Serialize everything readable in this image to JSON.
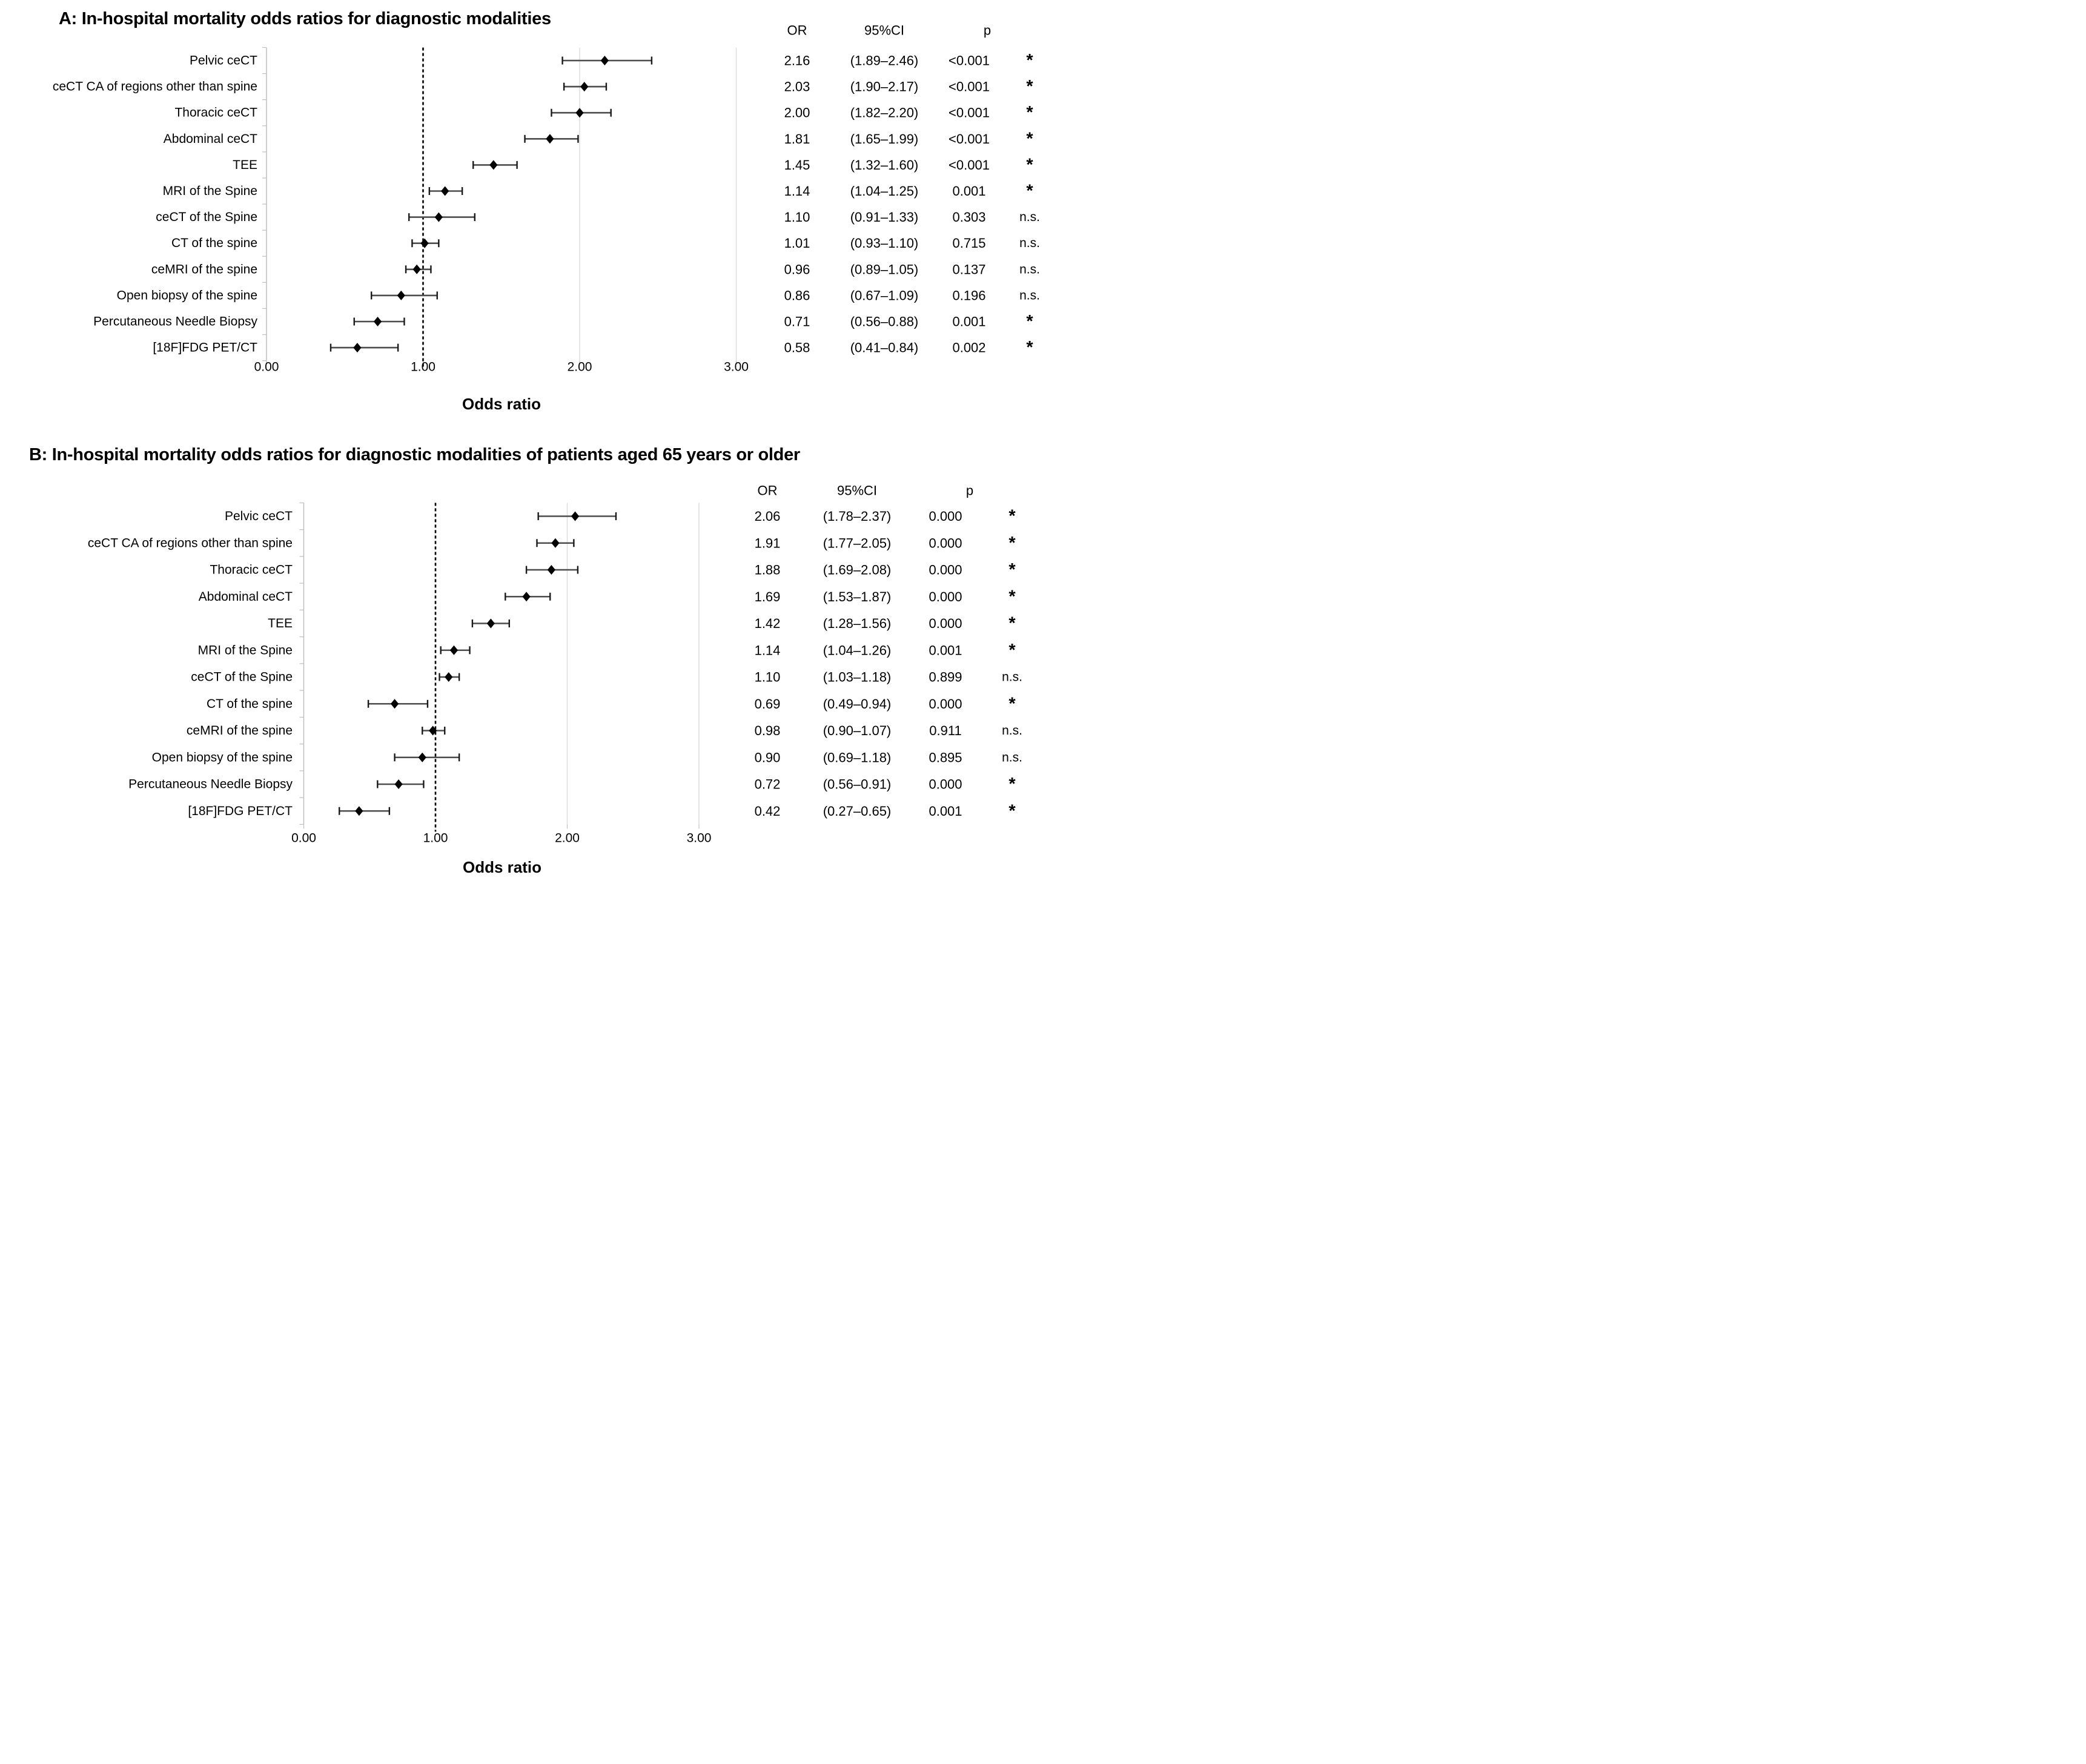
{
  "figure": {
    "panels": [
      {
        "id": "A",
        "title": "A: In-hospital mortality odds ratios for diagnostic modalities",
        "columns": {
          "or": "OR",
          "ci": "95%CI",
          "p": "p"
        },
        "xlabel": "Odds ratio",
        "x_ticks": [
          "0.00",
          "1.00",
          "2.00",
          "3.00"
        ],
        "rows": [
          {
            "label": "Pelvic ceCT",
            "or": 2.16,
            "ci_low": 1.89,
            "ci_high": 2.46,
            "or_text": "2.16",
            "ci_text": "(1.89–2.46)",
            "p_text": "<0.001",
            "sig": "*"
          },
          {
            "label": "ceCT CA of regions other than spine",
            "or": 2.03,
            "ci_low": 1.9,
            "ci_high": 2.17,
            "or_text": "2.03",
            "ci_text": "(1.90–2.17)",
            "p_text": "<0.001",
            "sig": "*"
          },
          {
            "label": "Thoracic ceCT",
            "or": 2.0,
            "ci_low": 1.82,
            "ci_high": 2.2,
            "or_text": "2.00",
            "ci_text": "(1.82–2.20)",
            "p_text": "<0.001",
            "sig": "*"
          },
          {
            "label": "Abdominal ceCT",
            "or": 1.81,
            "ci_low": 1.65,
            "ci_high": 1.99,
            "or_text": "1.81",
            "ci_text": "(1.65–1.99)",
            "p_text": "<0.001",
            "sig": "*"
          },
          {
            "label": "TEE",
            "or": 1.45,
            "ci_low": 1.32,
            "ci_high": 1.6,
            "or_text": "1.45",
            "ci_text": "(1.32–1.60)",
            "p_text": "<0.001",
            "sig": "*"
          },
          {
            "label": "MRI of the Spine",
            "or": 1.14,
            "ci_low": 1.04,
            "ci_high": 1.25,
            "or_text": "1.14",
            "ci_text": "(1.04–1.25)",
            "p_text": "0.001",
            "sig": "*"
          },
          {
            "label": "ceCT of the Spine",
            "or": 1.1,
            "ci_low": 0.91,
            "ci_high": 1.33,
            "or_text": "1.10",
            "ci_text": "(0.91–1.33)",
            "p_text": "0.303",
            "sig": "n.s."
          },
          {
            "label": "CT of the spine",
            "or": 1.01,
            "ci_low": 0.93,
            "ci_high": 1.1,
            "or_text": "1.01",
            "ci_text": "(0.93–1.10)",
            "p_text": "0.715",
            "sig": "n.s."
          },
          {
            "label": "ceMRI of the spine",
            "or": 0.96,
            "ci_low": 0.89,
            "ci_high": 1.05,
            "or_text": "0.96",
            "ci_text": "(0.89–1.05)",
            "p_text": "0.137",
            "sig": "n.s."
          },
          {
            "label": "Open biopsy of the spine",
            "or": 0.86,
            "ci_low": 0.67,
            "ci_high": 1.09,
            "or_text": "0.86",
            "ci_text": "(0.67–1.09)",
            "p_text": "0.196",
            "sig": "n.s."
          },
          {
            "label": "Percutaneous Needle Biopsy",
            "or": 0.71,
            "ci_low": 0.56,
            "ci_high": 0.88,
            "or_text": "0.71",
            "ci_text": "(0.56–0.88)",
            "p_text": "0.001",
            "sig": "*"
          },
          {
            "label": "[18F]FDG PET/CT",
            "or": 0.58,
            "ci_low": 0.41,
            "ci_high": 0.84,
            "or_text": "0.58",
            "ci_text": "(0.41–0.84)",
            "p_text": "0.002",
            "sig": "*"
          }
        ]
      },
      {
        "id": "B",
        "title": "B: In-hospital mortality odds ratios for diagnostic modalities of patients aged 65 years or older",
        "columns": {
          "or": "OR",
          "ci": "95%CI",
          "p": "p"
        },
        "xlabel": "Odds ratio",
        "x_ticks": [
          "0.00",
          "1.00",
          "2.00",
          "3.00"
        ],
        "rows": [
          {
            "label": "Pelvic ceCT",
            "or": 2.06,
            "ci_low": 1.78,
            "ci_high": 2.37,
            "or_text": "2.06",
            "ci_text": "(1.78–2.37)",
            "p_text": "0.000",
            "sig": "*"
          },
          {
            "label": "ceCT CA of regions other than spine",
            "or": 1.91,
            "ci_low": 1.77,
            "ci_high": 2.05,
            "or_text": "1.91",
            "ci_text": "(1.77–2.05)",
            "p_text": "0.000",
            "sig": "*"
          },
          {
            "label": "Thoracic ceCT",
            "or": 1.88,
            "ci_low": 1.69,
            "ci_high": 2.08,
            "or_text": "1.88",
            "ci_text": "(1.69–2.08)",
            "p_text": "0.000",
            "sig": "*"
          },
          {
            "label": "Abdominal ceCT",
            "or": 1.69,
            "ci_low": 1.53,
            "ci_high": 1.87,
            "or_text": "1.69",
            "ci_text": "(1.53–1.87)",
            "p_text": "0.000",
            "sig": "*"
          },
          {
            "label": "TEE",
            "or": 1.42,
            "ci_low": 1.28,
            "ci_high": 1.56,
            "or_text": "1.42",
            "ci_text": "(1.28–1.56)",
            "p_text": "0.000",
            "sig": "*"
          },
          {
            "label": "MRI of the Spine",
            "or": 1.14,
            "ci_low": 1.04,
            "ci_high": 1.26,
            "or_text": "1.14",
            "ci_text": "(1.04–1.26)",
            "p_text": "0.001",
            "sig": "*"
          },
          {
            "label": "ceCT of the Spine",
            "or": 1.1,
            "ci_low": 1.03,
            "ci_high": 1.18,
            "or_text": "1.10",
            "ci_text": "(1.03–1.18)",
            "p_text": "0.899",
            "sig": "n.s."
          },
          {
            "label": "CT of the spine",
            "or": 0.69,
            "ci_low": 0.49,
            "ci_high": 0.94,
            "or_text": "0.69",
            "ci_text": "(0.49–0.94)",
            "p_text": "0.000",
            "sig": "*"
          },
          {
            "label": "ceMRI of the spine",
            "or": 0.98,
            "ci_low": 0.9,
            "ci_high": 1.07,
            "or_text": "0.98",
            "ci_text": "(0.90–1.07)",
            "p_text": "0.911",
            "sig": "n.s."
          },
          {
            "label": "Open biopsy of the spine",
            "or": 0.9,
            "ci_low": 0.69,
            "ci_high": 1.18,
            "or_text": "0.90",
            "ci_text": "(0.69–1.18)",
            "p_text": "0.895",
            "sig": "n.s."
          },
          {
            "label": "Percutaneous Needle Biopsy",
            "or": 0.72,
            "ci_low": 0.56,
            "ci_high": 0.91,
            "or_text": "0.72",
            "ci_text": "(0.56–0.91)",
            "p_text": "0.000",
            "sig": "*"
          },
          {
            "label": "[18F]FDG PET/CT",
            "or": 0.42,
            "ci_low": 0.27,
            "ci_high": 0.65,
            "or_text": "0.42",
            "ci_text": "(0.27–0.65)",
            "p_text": "0.001",
            "sig": "*"
          }
        ]
      }
    ],
    "colors": {
      "marker": "#000000",
      "ci_bar": "#4d4d4d",
      "ci_cap": "#1a1a1a",
      "gridline": "#d9d9d9",
      "axis": "#bfbfbf",
      "reference_line": "#000000",
      "text": "#000000"
    }
  },
  "chart_data": [
    {
      "type": "scatter",
      "subtype": "forest-plot",
      "title": "A: In-hospital mortality odds ratios for diagnostic modalities",
      "categories": [
        "Pelvic ceCT",
        "ceCT CA of regions other than spine",
        "Thoracic ceCT",
        "Abdominal ceCT",
        "TEE",
        "MRI of the Spine",
        "ceCT of the Spine",
        "CT of the spine",
        "ceMRI of the spine",
        "Open biopsy of the spine",
        "Percutaneous Needle Biopsy",
        "[18F]FDG PET/CT"
      ],
      "series": [
        {
          "name": "OR",
          "values": [
            2.16,
            2.03,
            2.0,
            1.81,
            1.45,
            1.14,
            1.1,
            1.01,
            0.96,
            0.86,
            0.71,
            0.58
          ]
        },
        {
          "name": "CI lower",
          "values": [
            1.89,
            1.9,
            1.82,
            1.65,
            1.32,
            1.04,
            0.91,
            0.93,
            0.89,
            0.67,
            0.56,
            0.41
          ]
        },
        {
          "name": "CI upper",
          "values": [
            2.46,
            2.17,
            2.2,
            1.99,
            1.6,
            1.25,
            1.33,
            1.1,
            1.05,
            1.09,
            0.88,
            0.84
          ]
        }
      ],
      "p_values": [
        "<0.001",
        "<0.001",
        "<0.001",
        "<0.001",
        "<0.001",
        "0.001",
        "0.303",
        "0.715",
        "0.137",
        "0.196",
        "0.001",
        "0.002"
      ],
      "significance": [
        "*",
        "*",
        "*",
        "*",
        "*",
        "*",
        "n.s.",
        "n.s.",
        "n.s.",
        "n.s.",
        "*",
        "*"
      ],
      "table_headers": [
        "OR",
        "95%CI",
        "p"
      ],
      "xlabel": "Odds ratio",
      "ylabel": "",
      "xlim": [
        0,
        3.3
      ],
      "x_ticks": [
        0.0,
        1.0,
        2.0,
        3.0
      ],
      "reference_line_x": 1.0,
      "grid": true,
      "legend": "none"
    },
    {
      "type": "scatter",
      "subtype": "forest-plot",
      "title": "B: In-hospital mortality odds ratios for diagnostic modalities of patients aged 65 years or older",
      "categories": [
        "Pelvic ceCT",
        "ceCT CA of regions other than spine",
        "Thoracic ceCT",
        "Abdominal ceCT",
        "TEE",
        "MRI of the Spine",
        "ceCT of the Spine",
        "CT of the spine",
        "ceMRI of the spine",
        "Open biopsy of the spine",
        "Percutaneous Needle Biopsy",
        "[18F]FDG PET/CT"
      ],
      "series": [
        {
          "name": "OR",
          "values": [
            2.06,
            1.91,
            1.88,
            1.69,
            1.42,
            1.14,
            1.1,
            0.69,
            0.98,
            0.9,
            0.72,
            0.42
          ]
        },
        {
          "name": "CI lower",
          "values": [
            1.78,
            1.77,
            1.69,
            1.53,
            1.28,
            1.04,
            1.03,
            0.49,
            0.9,
            0.69,
            0.56,
            0.27
          ]
        },
        {
          "name": "CI upper",
          "values": [
            2.37,
            2.05,
            2.08,
            1.87,
            1.56,
            1.26,
            1.18,
            0.94,
            1.07,
            1.18,
            0.91,
            0.65
          ]
        }
      ],
      "p_values": [
        "0.000",
        "0.000",
        "0.000",
        "0.000",
        "0.000",
        "0.001",
        "0.899",
        "0.000",
        "0.911",
        "0.895",
        "0.000",
        "0.001"
      ],
      "significance": [
        "*",
        "*",
        "*",
        "*",
        "*",
        "*",
        "n.s.",
        "*",
        "n.s.",
        "n.s.",
        "*",
        "*"
      ],
      "table_headers": [
        "OR",
        "95%CI",
        "p"
      ],
      "xlabel": "Odds ratio",
      "ylabel": "",
      "xlim": [
        0,
        3.3
      ],
      "x_ticks": [
        0.0,
        1.0,
        2.0,
        3.0
      ],
      "reference_line_x": 1.0,
      "grid": true,
      "legend": "none"
    }
  ]
}
